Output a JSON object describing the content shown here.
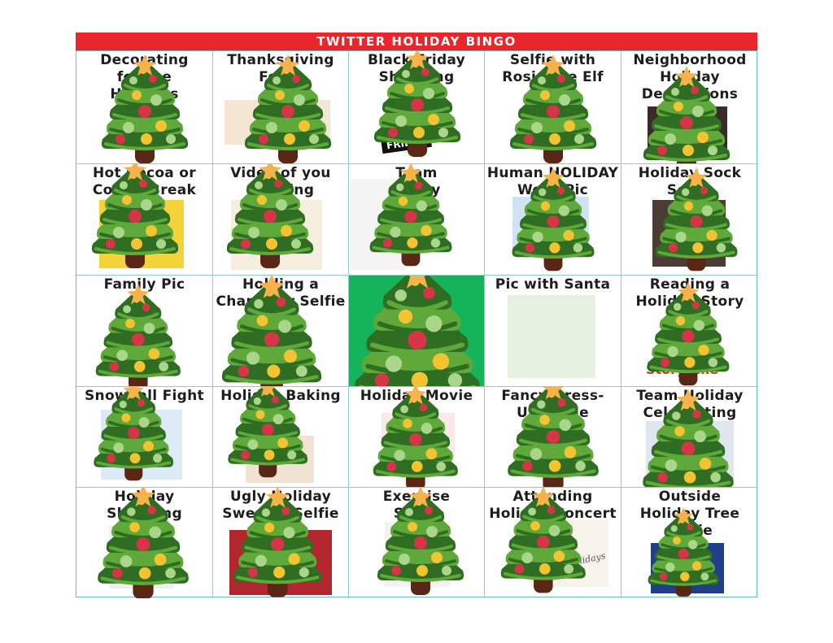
{
  "board": {
    "title": "TWITTER HOLIDAY BINGO",
    "squares": [
      {
        "id": "decorating",
        "label": "Decorating\nfor the\nHolidays"
      },
      {
        "id": "thanksgiving",
        "label": "Thanksgiving\nFeast"
      },
      {
        "id": "black-friday",
        "label": "Black Friday\nShopping"
      },
      {
        "id": "selfie-elf",
        "label": "Selfie with\nRosie the Elf"
      },
      {
        "id": "neighborhood",
        "label": "Neighborhood\nHoliday\nDecorations"
      },
      {
        "id": "hot-cocoa",
        "label": "Hot Cocoa or\nCoffee Break"
      },
      {
        "id": "video-caroling",
        "label": "Video of you\nCaroling"
      },
      {
        "id": "team-pic",
        "label": "Team\nPic by\nthe\nStaff\nTree"
      },
      {
        "id": "human-word",
        "label": "Human HOLIDAY\nWord Pic"
      },
      {
        "id": "sock",
        "label": "Holiday Sock\nSelfie"
      },
      {
        "id": "family",
        "label": "Family Pic"
      },
      {
        "id": "character",
        "label": "Holding a\nCharacter Selfie"
      },
      {
        "id": "free",
        "label": ""
      },
      {
        "id": "santa",
        "label": "Pic with Santa"
      },
      {
        "id": "reading",
        "label": "Reading a\nHoliday Story"
      },
      {
        "id": "snowball",
        "label": "Snowball Fight"
      },
      {
        "id": "baking",
        "label": "Holiday Baking"
      },
      {
        "id": "movie",
        "label": "Holiday Movie"
      },
      {
        "id": "fancy-dress",
        "label": "Fancy Dress-\nUp Selfie"
      },
      {
        "id": "team-celebrating",
        "label": "Team Holiday\nCelebrating"
      },
      {
        "id": "shopping",
        "label": "Holiday\nShopping"
      },
      {
        "id": "sweater",
        "label": "Ugly Holiday\nSweater Selfie"
      },
      {
        "id": "exercise",
        "label": "Exercise\nSelfie"
      },
      {
        "id": "concert",
        "label": "Attending\nHoliday Concert"
      },
      {
        "id": "outside-tree",
        "label": "Outside\nHoliday Tree\nSelfie"
      }
    ],
    "image_texts": {
      "black_friday_sign": "FRIDAY",
      "story_time": "Storytime",
      "concert_script": "Holidays"
    }
  },
  "colors": {
    "banner": "#e8262b",
    "grid_line": "#8fcdc5",
    "free_square": "#16b45a",
    "tree_dark": "#2f6e22",
    "tree_light": "#5fa83a",
    "ornament_red": "#d63447",
    "ornament_yellow": "#f3c331",
    "ornament_green": "#a9d68b",
    "star": "#f7b24b",
    "trunk": "#5a2716"
  },
  "icons": [
    "christmas-tree-icon",
    "star-icon"
  ]
}
